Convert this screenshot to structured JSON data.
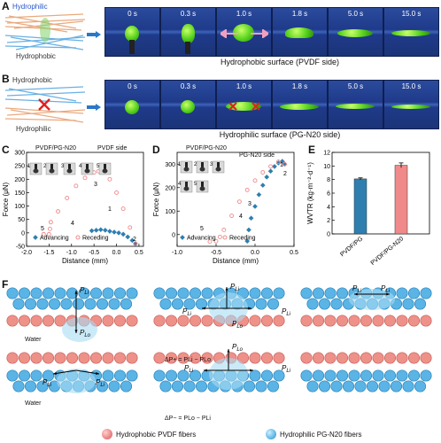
{
  "panels": {
    "A": {
      "label": "A",
      "top_layer": "Hydrophilic",
      "bottom_layer": "Hydrophobic",
      "times": [
        "0 s",
        "0.3 s",
        "1.0 s",
        "1.8 s",
        "5.0 s",
        "15.0 s"
      ],
      "caption": "Hydrophobic surface (PVDF side)"
    },
    "B": {
      "label": "B",
      "top_layer": "Hydrophobic",
      "bottom_layer": "Hydrophilic",
      "times": [
        "0 s",
        "0.3 s",
        "1.0 s",
        "1.8 s",
        "5.0 s",
        "15.0 s"
      ],
      "caption": "Hydrophilic surface (PG-N20 side)"
    },
    "C": {
      "label": "C",
      "sample": "PVDF/PG-N20",
      "side": "PVDF side",
      "insets": [
        "1",
        "2",
        "3",
        "4",
        "5"
      ],
      "point_labels": [
        "1",
        "2",
        "3",
        "4",
        "5"
      ]
    },
    "D": {
      "label": "D",
      "sample": "PVDF/PG-N20",
      "side": "PG-N20 side",
      "insets": [
        "1",
        "2",
        "3",
        "4",
        "5"
      ],
      "point_labels": [
        "1",
        "2",
        "3",
        "4",
        "5"
      ]
    },
    "E": {
      "label": "E"
    },
    "F": {
      "label": "F",
      "pli": "P",
      "pli_sub": "Li",
      "plo_sub": "Lo",
      "water": "Water",
      "eq_plus": "ΔP+ = PLi − PLo",
      "eq_minus": "ΔP− = PLo − PLi",
      "legend": [
        "Hydrophobic PVDF fibers",
        "Hydrophilic PG-N20 fibers"
      ]
    }
  },
  "chart_data": [
    {
      "type": "line",
      "panel": "C",
      "xlabel": "Distance (mm)",
      "ylabel": "Force (μN)",
      "xlim": [
        -2.0,
        0.6
      ],
      "ylim": [
        -50,
        300
      ],
      "xticks": [
        "-2.0",
        "-1.5",
        "-1.0",
        "-0.5",
        "0.0",
        "0.5"
      ],
      "yticks": [
        "-50",
        "0",
        "50",
        "100",
        "150",
        "200",
        "250",
        "300"
      ],
      "legend": [
        "Advancing",
        "Receding"
      ],
      "series": [
        {
          "name": "Advancing",
          "color": "#2e7fb0",
          "x": [
            -0.55,
            -0.45,
            -0.35,
            -0.25,
            -0.15,
            -0.05,
            0.05,
            0.15,
            0.25,
            0.35,
            0.42
          ],
          "y": [
            8,
            10,
            12,
            10,
            6,
            3,
            0,
            -5,
            -15,
            -28,
            -40
          ]
        },
        {
          "name": "Receding",
          "color": "#f08a8a",
          "x": [
            -1.62,
            -1.5,
            -1.48,
            -1.46,
            -1.3,
            -1.1,
            -0.9,
            -0.7,
            -0.5,
            -0.4,
            -0.3,
            -0.15,
            0.0,
            0.15,
            0.3,
            0.42
          ],
          "y": [
            -5,
            -5,
            15,
            40,
            80,
            130,
            175,
            205,
            225,
            230,
            225,
            200,
            150,
            90,
            20,
            -40
          ]
        }
      ]
    },
    {
      "type": "line",
      "panel": "D",
      "xlabel": "Distance (mm)",
      "ylabel": "Force (μN)",
      "xlim": [
        -1.0,
        0.5
      ],
      "ylim": [
        -50,
        350
      ],
      "xticks": [
        "-1.0",
        "-0.5",
        "0.0",
        "0.5"
      ],
      "yticks": [
        "0",
        "100",
        "200",
        "300"
      ],
      "legend": [
        "Advancing",
        "Receding"
      ],
      "series": [
        {
          "name": "Advancing",
          "color": "#2e7fb0",
          "x": [
            -0.1,
            -0.08,
            -0.05,
            0.0,
            0.05,
            0.1,
            0.15,
            0.2,
            0.25,
            0.3,
            0.35,
            0.38
          ],
          "y": [
            -28,
            20,
            70,
            120,
            170,
            210,
            245,
            270,
            290,
            305,
            312,
            300
          ]
        },
        {
          "name": "Receding",
          "color": "#f08a8a",
          "x": [
            -0.58,
            -0.5,
            -0.45,
            -0.4,
            -0.3,
            -0.2,
            -0.1,
            0.0,
            0.1,
            0.2,
            0.3,
            0.38
          ],
          "y": [
            -30,
            -28,
            -10,
            20,
            80,
            140,
            190,
            230,
            265,
            290,
            310,
            300
          ]
        }
      ]
    },
    {
      "type": "bar",
      "panel": "E",
      "ylabel": "WVTR (kg·m⁻²·d⁻¹)",
      "categories": [
        "PVDF/PG",
        "PVDF/PG-N20"
      ],
      "values": [
        8.1,
        10.1
      ],
      "errors": [
        0.15,
        0.35
      ],
      "colors": [
        "#2e7fb0",
        "#f08a8a"
      ],
      "ylim": [
        0,
        12
      ],
      "yticks": [
        "0",
        "2",
        "4",
        "6",
        "8",
        "10",
        "12"
      ]
    }
  ]
}
